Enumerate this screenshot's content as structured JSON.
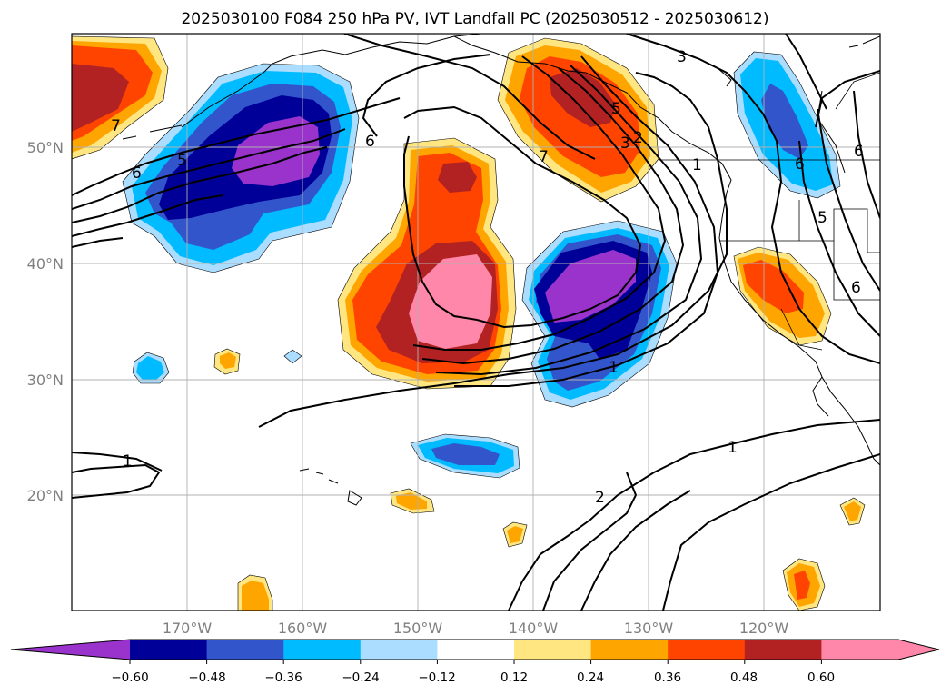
{
  "title": "2025030100 F084 250 hPa PV, IVT Landfall PC (2025030512 - 2025030612)",
  "lat_ticks": [
    "50°N",
    "40°N",
    "30°N",
    "20°N"
  ],
  "lon_ticks": [
    "170°W",
    "160°W",
    "150°W",
    "140°W",
    "130°W",
    "120°W"
  ],
  "colorbar": {
    "tick_labels": [
      "−0.60",
      "−0.48",
      "−0.36",
      "−0.24",
      "−0.12",
      "0.12",
      "0.24",
      "0.36",
      "0.48",
      "0.60"
    ],
    "colors": [
      "#9933cc",
      "#000099",
      "#3355cc",
      "#00bbff",
      "#aaddff",
      "#ffffff",
      "#ffe680",
      "#ffa500",
      "#ff4400",
      "#b22222",
      "#ff88aa",
      "#ff88aa"
    ]
  },
  "contour_labels": [
    "1",
    "1",
    "1",
    "1",
    "2",
    "2",
    "3",
    "3",
    "5",
    "5",
    "5",
    "6",
    "6",
    "6",
    "6",
    "7",
    "7",
    "6"
  ],
  "map_extent": {
    "lon_min": -180,
    "lon_max": -110,
    "lat_min": 10,
    "lat_max": 60
  }
}
